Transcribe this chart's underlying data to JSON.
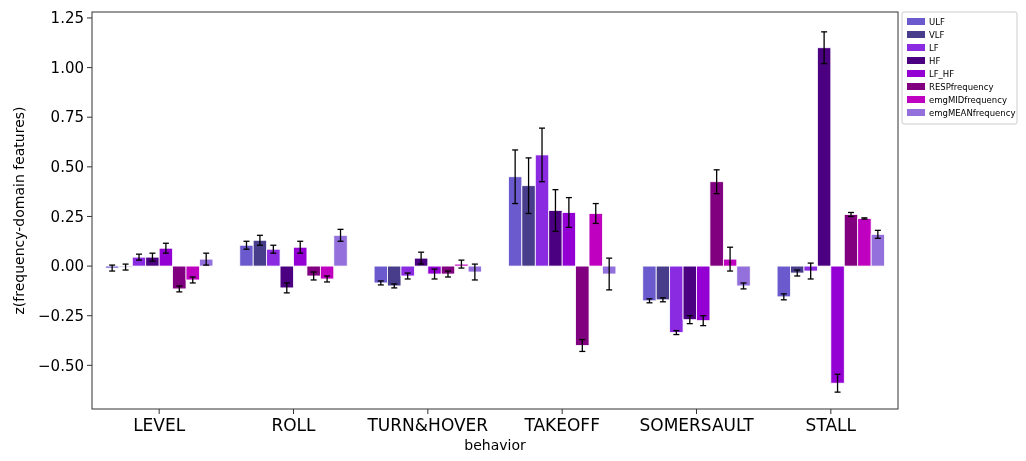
{
  "chart_data": {
    "type": "bar",
    "xlabel": "behavior",
    "ylabel": "z(frequency-domain features)",
    "categories": [
      "LEVEL",
      "ROLL",
      "TURN&HOVER",
      "TAKEOFF",
      "SOMERSAULT",
      "STALL"
    ],
    "ylim": [
      -0.72,
      1.28
    ],
    "yticks": [
      {
        "value": -0.5,
        "label": "−0.50"
      },
      {
        "value": -0.25,
        "label": "−0.25"
      },
      {
        "value": 0,
        "label": "0.00"
      },
      {
        "value": 0.25,
        "label": "0.25"
      },
      {
        "value": 0.5,
        "label": "0.50"
      },
      {
        "value": 0.75,
        "label": "0.75"
      },
      {
        "value": 1,
        "label": "1.00"
      },
      {
        "value": 1.25,
        "label": "1.25"
      }
    ],
    "grid": false,
    "legend": "top right",
    "series": [
      {
        "name": "ULF",
        "color": "#6a5acd",
        "values": [
          -0.01,
          0.105,
          -0.085,
          0.45,
          -0.175,
          -0.155
        ],
        "errors": [
          0.015,
          0.02,
          0.01,
          0.135,
          0.01,
          0.015
        ]
      },
      {
        "name": "VLF",
        "color": "#483d8b",
        "values": [
          -0.005,
          0.13,
          -0.1,
          0.405,
          -0.17,
          -0.035
        ],
        "errors": [
          0.015,
          0.025,
          0.01,
          0.14,
          0.01,
          0.015
        ]
      },
      {
        "name": "LF",
        "color": "#8a2be2",
        "values": [
          0.045,
          0.085,
          -0.05,
          0.56,
          -0.335,
          -0.025
        ],
        "errors": [
          0.015,
          0.02,
          0.015,
          0.135,
          0.01,
          0.04
        ]
      },
      {
        "name": "HF",
        "color": "#4b0082",
        "values": [
          0.045,
          -0.11,
          0.04,
          0.28,
          -0.27,
          1.1
        ],
        "errors": [
          0.02,
          0.025,
          0.03,
          0.105,
          0.02,
          0.08
        ]
      },
      {
        "name": "LF_HF",
        "color": "#9400d3",
        "values": [
          0.09,
          0.095,
          -0.04,
          0.27,
          -0.275,
          -0.59
        ],
        "errors": [
          0.025,
          0.03,
          0.025,
          0.075,
          0.025,
          0.045
        ]
      },
      {
        "name": "RESPfrequency",
        "color": "#800080",
        "values": [
          -0.115,
          -0.05,
          -0.04,
          -0.4,
          0.425,
          0.26
        ],
        "errors": [
          0.015,
          0.02,
          0.015,
          0.03,
          0.06,
          0.01
        ]
      },
      {
        "name": "emgMIDfrequency",
        "color": "#c000c0",
        "values": [
          -0.07,
          -0.065,
          0.01,
          0.265,
          0.035,
          0.24
        ],
        "errors": [
          0.015,
          0.015,
          0.02,
          0.05,
          0.06,
          0.003
        ]
      },
      {
        "name": "emgMEANfrequency",
        "color": "#9370db",
        "values": [
          0.035,
          0.155,
          -0.03,
          -0.04,
          -0.1,
          0.16
        ],
        "errors": [
          0.03,
          0.03,
          0.04,
          0.08,
          0.015,
          0.02
        ]
      }
    ]
  }
}
